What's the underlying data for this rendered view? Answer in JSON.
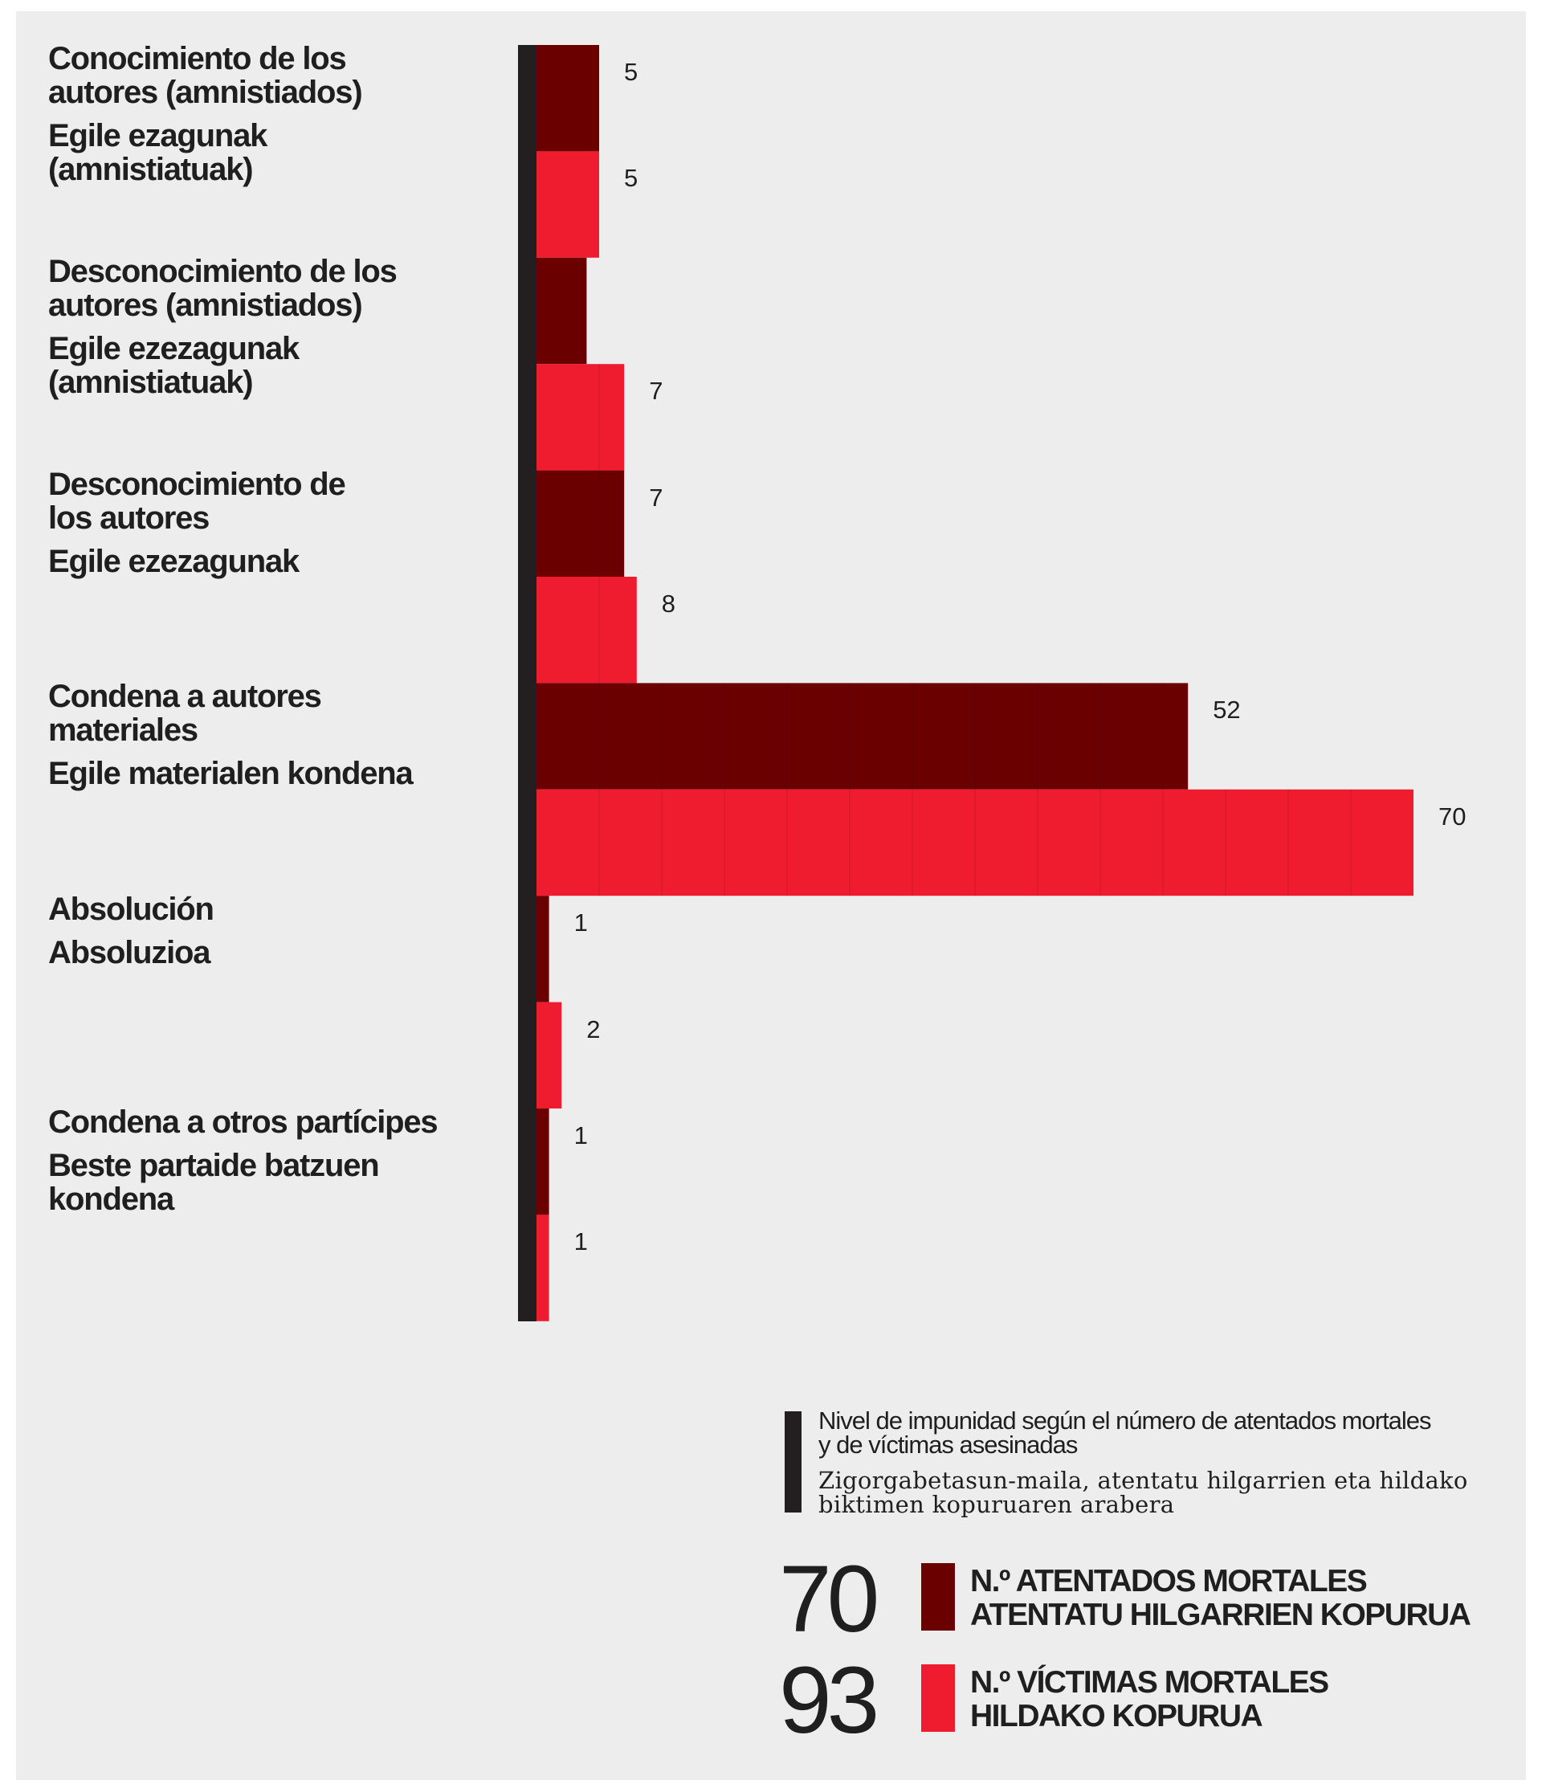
{
  "chart_data": {
    "type": "bar",
    "title": "Nivel de impunidad según el número de atentados mortales\ny de víctimas asesinadas",
    "title_eu": "Zigorgabetasun-maila, atentatu hilgarrien eta hildako\nbiktimen kopuruaren arabera",
    "categories": [
      "Conocimiento de los\nautores (amnistiados)",
      "Desconocimiento de los\nautores (amnistiados)",
      "Desconocimiento de\nlos autores",
      "Condena a autores\nmateriales",
      "Absolución",
      "Condena a otros partícipes"
    ],
    "categories_eu": [
      "Egile ezagunak\n(amnistiatuak)",
      "Egile ezezagunak\n(amnistiatuak)",
      "Egile ezezagunak",
      "Egile materialen kondena",
      "Absoluzioa",
      "Beste partaide batzuen\nkondena"
    ],
    "xlim": [
      0,
      70
    ],
    "series": [
      {
        "name": "N.º ATENTADOS MORTALES",
        "name_eu": "ATENTATU HILGARRIEN KOPURUA",
        "color": "#6b0000",
        "total": 70,
        "values": [
          5,
          4,
          7,
          52,
          1,
          1
        ],
        "value_labels": [
          5,
          null,
          7,
          52,
          1,
          1
        ]
      },
      {
        "name": "N.º VÍCTIMAS MORTALES",
        "name_eu": "HILDAKO KOPURUA",
        "color": "#ee1c2e",
        "total": 93,
        "values": [
          5,
          7,
          8,
          70,
          2,
          1
        ],
        "value_labels": [
          5,
          7,
          8,
          70,
          2,
          1
        ]
      }
    ]
  }
}
